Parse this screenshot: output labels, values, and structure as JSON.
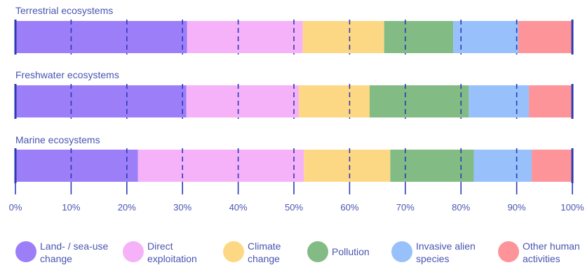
{
  "chart_data": {
    "type": "bar",
    "orientation": "horizontal",
    "stacked": true,
    "categories": [
      "Terrestrial ecosystems",
      "Freshwater ecosystems",
      "Marine ecosystems"
    ],
    "series": [
      {
        "name": "Land- / sea-use change",
        "label_lines": [
          "Land- / sea-use",
          "change"
        ],
        "color": "#9b7ef8",
        "values": [
          30.8,
          30.7,
          22.0
        ]
      },
      {
        "name": "Direct exploitation",
        "label_lines": [
          "Direct",
          "exploitation"
        ],
        "color": "#f5b2f8",
        "values": [
          20.8,
          20.2,
          29.8
        ]
      },
      {
        "name": "Climate change",
        "label_lines": [
          "Climate",
          "change"
        ],
        "color": "#fdd884",
        "values": [
          14.6,
          12.7,
          15.5
        ]
      },
      {
        "name": "Pollution",
        "label_lines": [
          "Pollution"
        ],
        "color": "#82bb84",
        "values": [
          12.4,
          17.8,
          15.0
        ]
      },
      {
        "name": "Invasive alien species",
        "label_lines": [
          "Invasive alien",
          "species"
        ],
        "color": "#98c1fb",
        "values": [
          11.7,
          10.8,
          10.4
        ]
      },
      {
        "name": "Other human activities",
        "label_lines": [
          "Other human",
          "activities"
        ],
        "color": "#fd9499",
        "values": [
          9.7,
          7.8,
          7.3
        ]
      }
    ],
    "xlim": [
      0,
      100
    ],
    "xticks": [
      "0%",
      "10%",
      "20%",
      "30%",
      "40%",
      "50%",
      "60%",
      "70%",
      "80%",
      "90%",
      "100%"
    ],
    "grid": true,
    "legend": "bottom"
  }
}
